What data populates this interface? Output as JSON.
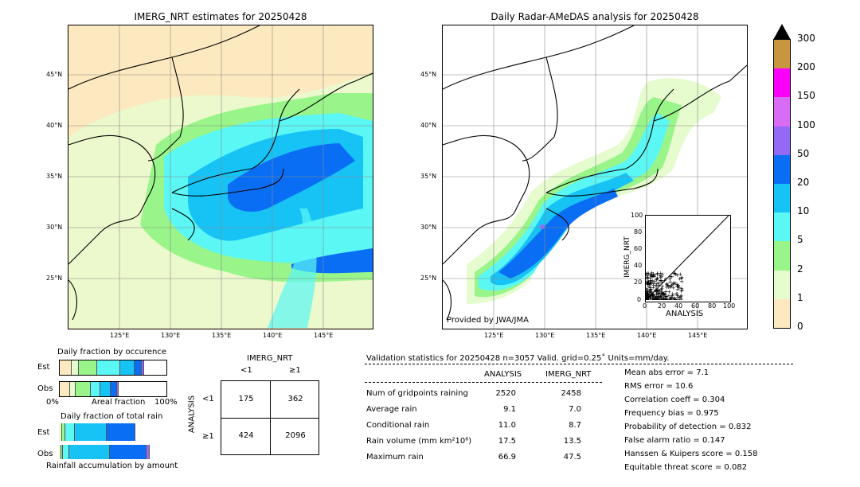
{
  "map_left": {
    "title": "IMERG_NRT estimates for 20250428",
    "lat_labels": [
      "45°N",
      "40°N",
      "35°N",
      "30°N",
      "25°N"
    ],
    "lon_labels": [
      "125°E",
      "130°E",
      "135°E",
      "140°E",
      "145°E"
    ]
  },
  "map_right": {
    "title": "Daily Radar-AMeDAS analysis for 20250428",
    "lat_labels": [
      "45°N",
      "40°N",
      "35°N",
      "30°N",
      "25°N"
    ],
    "lon_labels": [
      "125°E",
      "130°E",
      "135°E",
      "140°E",
      "145°E"
    ],
    "credit": "Provided by JWA/JMA"
  },
  "colorbar": {
    "labels": [
      "0",
      "1",
      "2",
      "5",
      "10",
      "20",
      "50",
      "100",
      "150",
      "200",
      "300"
    ],
    "colors": [
      "#fde9bf",
      "#e6fccf",
      "#99f58a",
      "#5af7f5",
      "#17c3f5",
      "#0a6ef5",
      "#9469f5",
      "#d96cf5",
      "#fa00fa",
      "#c99640"
    ]
  },
  "scatter": {
    "xlabel": "ANALYSIS",
    "ylabel": "IMERG_NRT",
    "ticks": [
      "0",
      "20",
      "40",
      "60",
      "80",
      "100"
    ]
  },
  "fraction_occurrence": {
    "title": "Daily fraction by occurence",
    "row_labels": [
      "Est",
      "Obs"
    ],
    "axis_left": "0%",
    "axis_mid": "Areal fraction",
    "axis_right": "100%",
    "est_fracs": [
      0.11,
      0.07,
      0.17,
      0.22,
      0.13,
      0.07,
      0.02
    ],
    "obs_fracs": [
      0.1,
      0.05,
      0.14,
      0.09,
      0.1,
      0.06,
      0.01
    ]
  },
  "fraction_total": {
    "title": "Daily fraction of total rain",
    "row_labels": [
      "Est",
      "Obs"
    ],
    "axis_bottom": "Rainfall accumulation by amount",
    "est_fracs": [
      0.03,
      0.03,
      0.09,
      0.3,
      0.27,
      0.0
    ],
    "obs_fracs": [
      0.02,
      0.02,
      0.06,
      0.38,
      0.34,
      0.03
    ]
  },
  "contingency": {
    "title": "IMERG_NRT",
    "col_labels": [
      "<1",
      "≥1"
    ],
    "row_axis": "ANALYSIS",
    "row_labels": [
      "<1",
      "≥1"
    ],
    "cells": [
      "175",
      "362",
      "424",
      "2096"
    ]
  },
  "validation": {
    "header": "Validation statistics for 20250428  n=3057 Valid. grid=0.25˚ Units=mm/day.",
    "col_analysis": "ANALYSIS",
    "col_imerg": "IMERG_NRT",
    "rows": [
      {
        "label": "Num of gridpoints raining",
        "analysis": "2520",
        "imerg": "2458"
      },
      {
        "label": "Average rain",
        "analysis": "9.1",
        "imerg": "7.0"
      },
      {
        "label": "Conditional rain",
        "analysis": "11.0",
        "imerg": "8.7"
      },
      {
        "label": "Rain volume (mm km²10⁶)",
        "analysis": "17.5",
        "imerg": "13.5"
      },
      {
        "label": "Maximum rain",
        "analysis": "66.9",
        "imerg": "47.5"
      }
    ],
    "scores": [
      "Mean abs error =    7.1",
      "RMS error =   10.6",
      "Correlation coeff =  0.304",
      "Frequency bias =  0.975",
      "Probability of detection =  0.832",
      "False alarm ratio =  0.147",
      "Hanssen & Kuipers score =  0.158",
      "Equitable threat score =  0.082"
    ]
  }
}
